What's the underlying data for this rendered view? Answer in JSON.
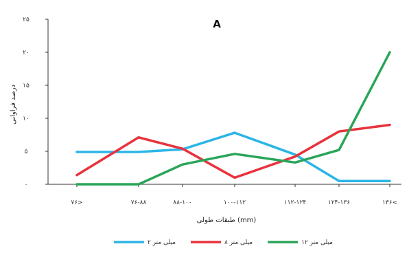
{
  "chart_data": {
    "type": "line",
    "title": "A",
    "xlabel": "طبقات طولی (mm)",
    "ylabel": "درصد فراوانی",
    "categories": [
      "۷۶>",
      "۷۶-۸۸",
      "۸۸-۱۰۰",
      "۱۰۰-۱۱۲",
      "۱۱۲-۱۲۴",
      "۱۲۴-۱۳۶",
      "۱۳۶<"
    ],
    "y_ticks": [
      "۰",
      "۵",
      "۱۰",
      "۱۵",
      "۲۰",
      "۲۵"
    ],
    "ylim": [
      0,
      25
    ],
    "grid": false,
    "legend_position": "bottom",
    "series": [
      {
        "name": "۲ میلی متر",
        "color": "#2bb5e6",
        "values": [
          4.9,
          4.9,
          5.3,
          7.8,
          4.5,
          0.5,
          0.5
        ]
      },
      {
        "name": "۸ میلی متر",
        "color": "#e8323c",
        "values": [
          1.4,
          7.1,
          5.4,
          1.0,
          4.2,
          8.0,
          9.0
        ]
      },
      {
        "name": "۱۲ میلی متر",
        "color": "#2aa55a",
        "values": [
          0.0,
          0.0,
          3.0,
          4.6,
          3.3,
          5.2,
          20.0
        ]
      }
    ]
  }
}
